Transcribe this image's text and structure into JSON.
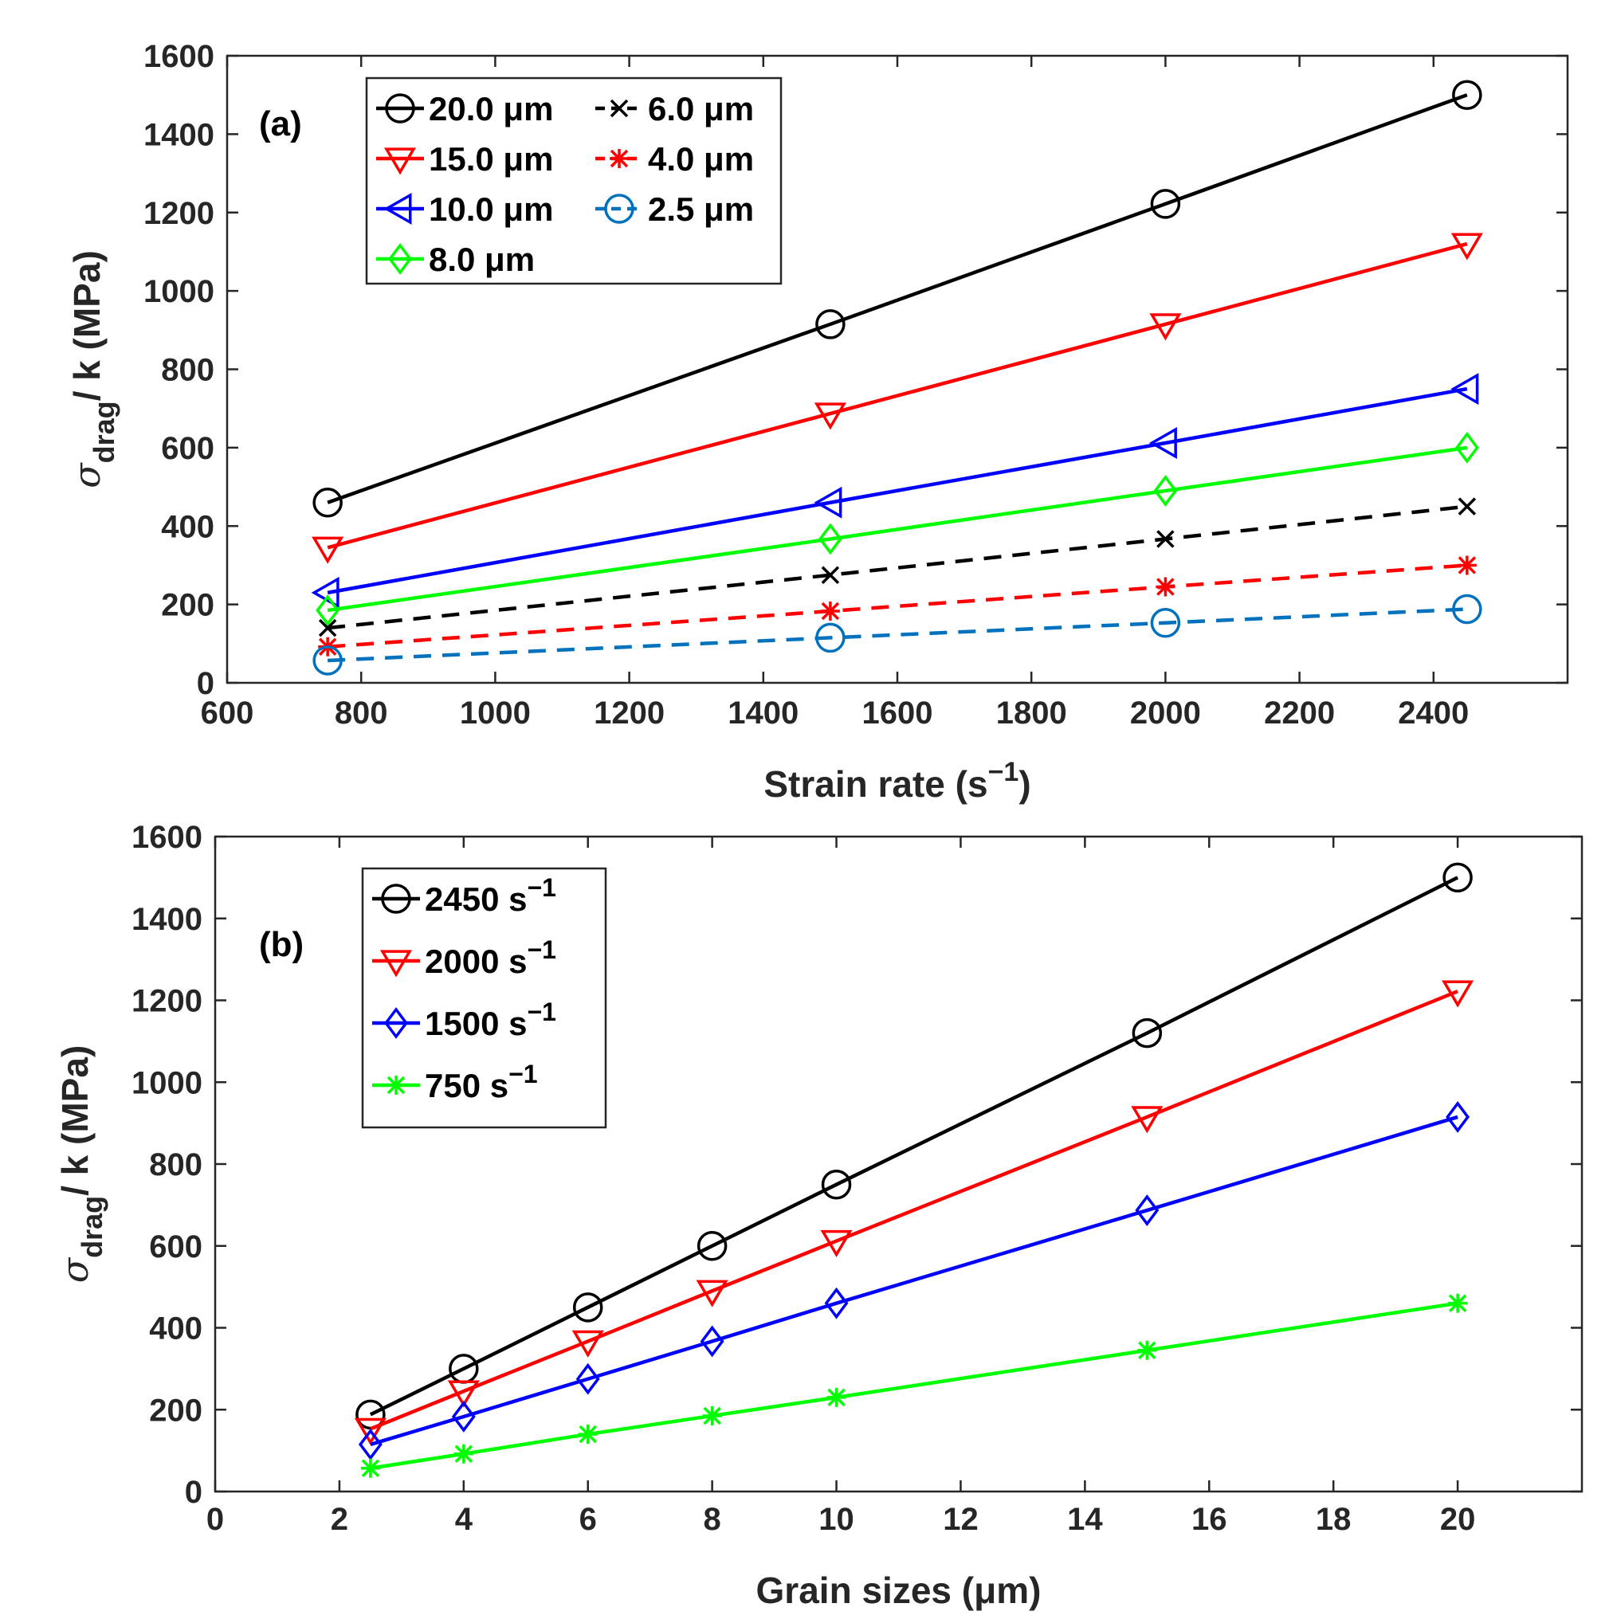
{
  "chart_data": [
    {
      "type": "line",
      "panel_label": "(a)",
      "xlabel": "Strain rate (s",
      "xlabel_sup": "−1",
      "xlabel_close": ")",
      "ylabel_sigma": "σ",
      "ylabel_sub": "drag",
      "ylabel_rest": "/ k (MPa)",
      "xlim": [
        600,
        2600
      ],
      "ylim": [
        0,
        1600
      ],
      "xticks": [
        "600",
        "800",
        "1000",
        "1200",
        "1400",
        "1600",
        "1800",
        "2000",
        "2200",
        "2400"
      ],
      "yticks": [
        "0",
        "200",
        "400",
        "600",
        "800",
        "1000",
        "1200",
        "1400",
        "1600"
      ],
      "legend_placement": "top-left",
      "grid": false,
      "x": [
        750,
        1500,
        2000,
        2450
      ],
      "series": [
        {
          "name": "20.0 μm",
          "color": "#000000",
          "marker": "circle",
          "dashed": false,
          "values": [
            460,
            915,
            1222,
            1500
          ]
        },
        {
          "name": "15.0 μm",
          "color": "#ff0000",
          "marker": "triangle-down",
          "dashed": false,
          "values": [
            345,
            687,
            915,
            1120
          ]
        },
        {
          "name": "10.0 μm",
          "color": "#0000ff",
          "marker": "triangle-left",
          "dashed": false,
          "values": [
            230,
            460,
            612,
            750
          ]
        },
        {
          "name": "8.0 μm",
          "color": "#00ff00",
          "marker": "diamond",
          "dashed": false,
          "values": [
            185,
            367,
            490,
            600
          ]
        },
        {
          "name": "6.0 μm",
          "color": "#000000",
          "marker": "x",
          "dashed": true,
          "values": [
            140,
            275,
            367,
            450
          ]
        },
        {
          "name": "4.0 μm",
          "color": "#ff0000",
          "marker": "asterisk",
          "dashed": true,
          "values": [
            92,
            183,
            245,
            300
          ]
        },
        {
          "name": "2.5 μm",
          "color": "#0072bd",
          "marker": "circle",
          "dashed": true,
          "values": [
            57,
            115,
            153,
            188
          ]
        }
      ]
    },
    {
      "type": "line",
      "panel_label": "(b)",
      "xlabel": "Grain sizes (μm)",
      "ylabel_sigma": "σ",
      "ylabel_sub": "drag",
      "ylabel_rest": "/ k (MPa)",
      "xlim": [
        0,
        22
      ],
      "ylim": [
        0,
        1600
      ],
      "xticks": [
        "0",
        "2",
        "4",
        "6",
        "8",
        "10",
        "12",
        "14",
        "16",
        "18",
        "20"
      ],
      "yticks": [
        "0",
        "200",
        "400",
        "600",
        "800",
        "1000",
        "1200",
        "1400",
        "1600"
      ],
      "legend_placement": "top-left",
      "grid": false,
      "x": [
        2.5,
        4,
        6,
        8,
        10,
        15,
        20
      ],
      "series": [
        {
          "name": "2450 s",
          "sup": "−1",
          "color": "#000000",
          "marker": "circle",
          "dashed": false,
          "values": [
            188,
            300,
            450,
            600,
            750,
            1120,
            1500
          ]
        },
        {
          "name": "2000 s",
          "sup": "−1",
          "color": "#ff0000",
          "marker": "triangle-down",
          "dashed": false,
          "values": [
            153,
            245,
            367,
            490,
            612,
            915,
            1222
          ]
        },
        {
          "name": "1500 s",
          "sup": "−1",
          "color": "#0000ff",
          "marker": "diamond",
          "dashed": false,
          "values": [
            115,
            183,
            275,
            367,
            460,
            687,
            915
          ]
        },
        {
          "name": "750 s",
          "sup": "−1",
          "color": "#00ff00",
          "marker": "asterisk",
          "dashed": false,
          "values": [
            57,
            92,
            140,
            185,
            230,
            345,
            460
          ]
        }
      ]
    }
  ]
}
